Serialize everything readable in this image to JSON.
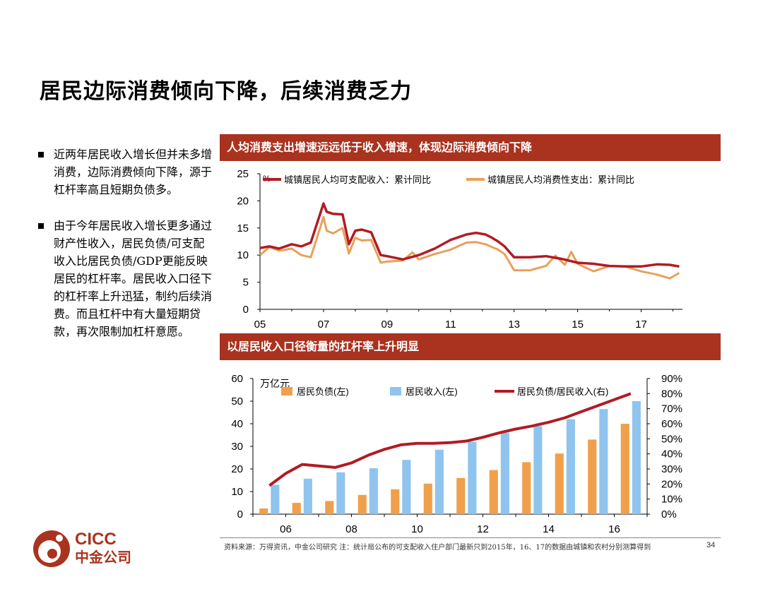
{
  "title": "居民边际消费倾向下降，后续消费乏力",
  "bullets": [
    "近两年居民收入增长但并未多增消费，边际消费倾向下降，源于杠杆率高且短期负债多。",
    "由于今年居民收入增长更多通过财产性收入，居民负债/可支配收入比居民负债/GDP更能反映居民的杠杆率。居民收入口径下的杠杆率上升迅猛，制约后续消费。而且杠杆中有大量短期贷款，再次限制加杠杆意愿。"
  ],
  "panel1_title": "人均消费支出增速远远低于收入增速，体现边际消费倾向下降",
  "panel2_title": "以居民收入口径衡量的杠杆率上升明显",
  "logo": {
    "en": "CICC",
    "cn": "中金公司"
  },
  "source": "资料来源：万得资讯，中金公司研究    注：统计局公布的可支配收入住户部门最新只到2015年，16、17的数据由城镇和农村分别测算得到",
  "page_number": "34",
  "colors": {
    "dark_red": "#a9331f",
    "line_red": "#b01c23",
    "orange": "#e8a05a",
    "bar_orange": "#f0a04b",
    "bar_blue": "#8fc4ee"
  },
  "chart_data": [
    {
      "type": "line",
      "unit_label": "%",
      "x_ticks": [
        "05",
        "07",
        "09",
        "11",
        "13",
        "15",
        "17"
      ],
      "ylim": [
        0,
        25
      ],
      "y_ticks": [
        "0",
        "5",
        "10",
        "15",
        "20",
        "25"
      ],
      "series": [
        {
          "name": "城镇居民人均可支配收入：累计同比",
          "x": [
            2005.0,
            2005.3,
            2005.6,
            2006.0,
            2006.3,
            2006.6,
            2007.0,
            2007.1,
            2007.3,
            2007.6,
            2007.8,
            2008.0,
            2008.2,
            2008.5,
            2008.8,
            2009.0,
            2009.5,
            2010.0,
            2010.5,
            2011.0,
            2011.5,
            2011.8,
            2012.1,
            2012.3,
            2012.5,
            2012.7,
            2013.0,
            2013.5,
            2014.0,
            2014.5,
            2015.0,
            2015.5,
            2016.0,
            2016.5,
            2017.0,
            2017.5,
            2017.9,
            2018.2
          ],
          "values": [
            11.3,
            11.6,
            11.2,
            12.0,
            11.6,
            12.3,
            19.5,
            18.0,
            17.6,
            17.5,
            12.0,
            14.5,
            14.7,
            14.2,
            10.0,
            9.8,
            9.2,
            10.0,
            11.2,
            12.8,
            13.8,
            14.1,
            13.8,
            13.2,
            12.5,
            11.6,
            9.6,
            9.6,
            9.8,
            9.3,
            8.6,
            8.4,
            8.0,
            7.9,
            7.9,
            8.3,
            8.2,
            7.9
          ]
        },
        {
          "name": "城镇居民人均消费性支出：累计同比",
          "x": [
            2005.0,
            2005.3,
            2005.6,
            2006.0,
            2006.3,
            2006.6,
            2007.0,
            2007.1,
            2007.3,
            2007.6,
            2007.8,
            2008.0,
            2008.2,
            2008.5,
            2008.8,
            2009.0,
            2009.5,
            2009.8,
            2010.0,
            2010.5,
            2011.0,
            2011.5,
            2011.8,
            2012.1,
            2012.3,
            2012.5,
            2012.7,
            2013.0,
            2013.5,
            2014.0,
            2014.3,
            2014.6,
            2014.8,
            2015.0,
            2015.5,
            2016.0,
            2016.5,
            2017.0,
            2017.5,
            2017.9,
            2018.2
          ],
          "values": [
            10.0,
            11.5,
            10.8,
            11.2,
            10.0,
            9.6,
            17.0,
            14.5,
            14.0,
            15.0,
            10.3,
            13.2,
            12.7,
            12.8,
            8.6,
            8.8,
            9.0,
            10.5,
            9.2,
            10.2,
            11.0,
            12.3,
            12.4,
            12.0,
            11.5,
            11.0,
            10.2,
            7.2,
            7.2,
            8.0,
            9.9,
            8.2,
            10.6,
            8.4,
            7.0,
            8.0,
            7.9,
            7.0,
            6.4,
            5.7,
            6.7
          ]
        }
      ]
    },
    {
      "type": "bar",
      "unit_label": "万亿元",
      "categories": [
        "06",
        "07",
        "08",
        "09",
        "10",
        "11",
        "12",
        "13",
        "14",
        "15",
        "16",
        "17"
      ],
      "x_ticks": [
        "06",
        "08",
        "10",
        "12",
        "14",
        "16"
      ],
      "ylim_left": [
        0,
        60
      ],
      "y_ticks_left": [
        "0",
        "10",
        "20",
        "30",
        "40",
        "50",
        "60"
      ],
      "ylim_right": [
        0,
        90
      ],
      "y_ticks_right": [
        "0%",
        "10%",
        "20%",
        "30%",
        "40%",
        "50%",
        "60%",
        "70%",
        "80%",
        "90%"
      ],
      "series": [
        {
          "name": "居民负债(左)",
          "values": [
            2.5,
            5.0,
            5.8,
            8.5,
            11.0,
            13.5,
            16.0,
            19.5,
            23.0,
            26.8,
            33.0,
            40.0
          ]
        },
        {
          "name": "居民收入(左)",
          "values": [
            13.0,
            15.7,
            18.5,
            20.3,
            24.0,
            28.5,
            32.0,
            36.0,
            39.0,
            42.0,
            46.5,
            50.0
          ]
        },
        {
          "name": "居民负债/居民收入(右)",
          "axis": "right",
          "x": [
            0,
            0.5,
            1,
            1.5,
            2,
            2.5,
            3,
            3.5,
            4,
            4.5,
            5,
            5.5,
            6,
            6.5,
            7,
            7.5,
            8,
            8.5,
            9,
            9.5,
            10,
            10.5,
            11
          ],
          "values": [
            19,
            27,
            33,
            32,
            31,
            34,
            39,
            43,
            46,
            47,
            47,
            47.5,
            48.5,
            51,
            54,
            56.5,
            58.5,
            61,
            64,
            68,
            72,
            76,
            80
          ]
        }
      ]
    }
  ]
}
